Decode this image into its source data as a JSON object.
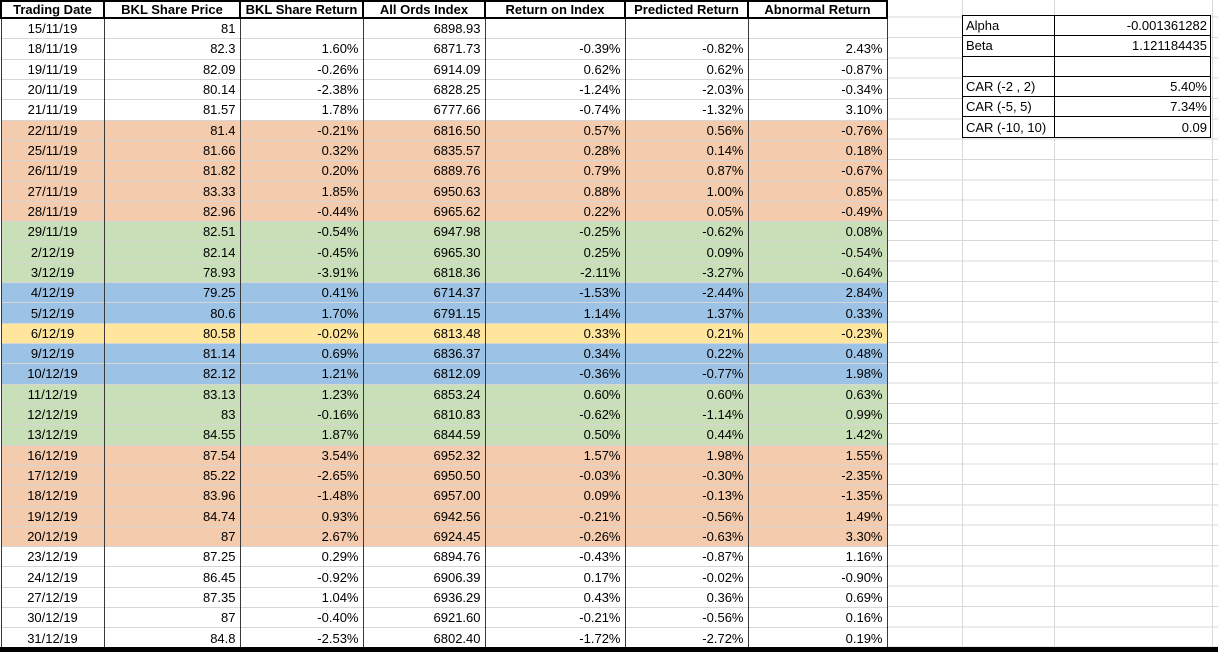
{
  "sheet": {
    "table": {
      "headers": [
        "Trading Date",
        "BKL Share Price",
        "BKL Share Return",
        "All Ords Index",
        "Return on Index",
        "Predicted Return",
        "Abnormal Return"
      ],
      "rows": [
        {
          "color": "none",
          "cells": [
            "15/11/19",
            "81",
            "",
            "6898.93",
            "",
            "",
            ""
          ]
        },
        {
          "color": "none",
          "cells": [
            "18/11/19",
            "82.3",
            "1.60%",
            "6871.73",
            "-0.39%",
            "-0.82%",
            "2.43%"
          ]
        },
        {
          "color": "none",
          "cells": [
            "19/11/19",
            "82.09",
            "-0.26%",
            "6914.09",
            "0.62%",
            "0.62%",
            "-0.87%"
          ]
        },
        {
          "color": "none",
          "cells": [
            "20/11/19",
            "80.14",
            "-2.38%",
            "6828.25",
            "-1.24%",
            "-2.03%",
            "-0.34%"
          ]
        },
        {
          "color": "none",
          "cells": [
            "21/11/19",
            "81.57",
            "1.78%",
            "6777.66",
            "-0.74%",
            "-1.32%",
            "3.10%"
          ]
        },
        {
          "color": "orange",
          "cells": [
            "22/11/19",
            "81.4",
            "-0.21%",
            "6816.50",
            "0.57%",
            "0.56%",
            "-0.76%"
          ]
        },
        {
          "color": "orange",
          "cells": [
            "25/11/19",
            "81.66",
            "0.32%",
            "6835.57",
            "0.28%",
            "0.14%",
            "0.18%"
          ]
        },
        {
          "color": "orange",
          "cells": [
            "26/11/19",
            "81.82",
            "0.20%",
            "6889.76",
            "0.79%",
            "0.87%",
            "-0.67%"
          ]
        },
        {
          "color": "orange",
          "cells": [
            "27/11/19",
            "83.33",
            "1.85%",
            "6950.63",
            "0.88%",
            "1.00%",
            "0.85%"
          ]
        },
        {
          "color": "orange",
          "cells": [
            "28/11/19",
            "82.96",
            "-0.44%",
            "6965.62",
            "0.22%",
            "0.05%",
            "-0.49%"
          ]
        },
        {
          "color": "green",
          "cells": [
            "29/11/19",
            "82.51",
            "-0.54%",
            "6947.98",
            "-0.25%",
            "-0.62%",
            "0.08%"
          ]
        },
        {
          "color": "green",
          "cells": [
            "2/12/19",
            "82.14",
            "-0.45%",
            "6965.30",
            "0.25%",
            "0.09%",
            "-0.54%"
          ]
        },
        {
          "color": "green",
          "cells": [
            "3/12/19",
            "78.93",
            "-3.91%",
            "6818.36",
            "-2.11%",
            "-3.27%",
            "-0.64%"
          ]
        },
        {
          "color": "blue",
          "cells": [
            "4/12/19",
            "79.25",
            "0.41%",
            "6714.37",
            "-1.53%",
            "-2.44%",
            "2.84%"
          ]
        },
        {
          "color": "blue",
          "cells": [
            "5/12/19",
            "80.6",
            "1.70%",
            "6791.15",
            "1.14%",
            "1.37%",
            "0.33%"
          ]
        },
        {
          "color": "yellow",
          "cells": [
            "6/12/19",
            "80.58",
            "-0.02%",
            "6813.48",
            "0.33%",
            "0.21%",
            "-0.23%"
          ]
        },
        {
          "color": "blue",
          "cells": [
            "9/12/19",
            "81.14",
            "0.69%",
            "6836.37",
            "0.34%",
            "0.22%",
            "0.48%"
          ]
        },
        {
          "color": "blue",
          "cells": [
            "10/12/19",
            "82.12",
            "1.21%",
            "6812.09",
            "-0.36%",
            "-0.77%",
            "1.98%"
          ]
        },
        {
          "color": "green",
          "cells": [
            "11/12/19",
            "83.13",
            "1.23%",
            "6853.24",
            "0.60%",
            "0.60%",
            "0.63%"
          ]
        },
        {
          "color": "green",
          "cells": [
            "12/12/19",
            "83",
            "-0.16%",
            "6810.83",
            "-0.62%",
            "-1.14%",
            "0.99%"
          ]
        },
        {
          "color": "green",
          "cells": [
            "13/12/19",
            "84.55",
            "1.87%",
            "6844.59",
            "0.50%",
            "0.44%",
            "1.42%"
          ]
        },
        {
          "color": "orange",
          "cells": [
            "16/12/19",
            "87.54",
            "3.54%",
            "6952.32",
            "1.57%",
            "1.98%",
            "1.55%"
          ]
        },
        {
          "color": "orange",
          "cells": [
            "17/12/19",
            "85.22",
            "-2.65%",
            "6950.50",
            "-0.03%",
            "-0.30%",
            "-2.35%"
          ]
        },
        {
          "color": "orange",
          "cells": [
            "18/12/19",
            "83.96",
            "-1.48%",
            "6957.00",
            "0.09%",
            "-0.13%",
            "-1.35%"
          ]
        },
        {
          "color": "orange",
          "cells": [
            "19/12/19",
            "84.74",
            "0.93%",
            "6942.56",
            "-0.21%",
            "-0.56%",
            "1.49%"
          ]
        },
        {
          "color": "orange",
          "cells": [
            "20/12/19",
            "87",
            "2.67%",
            "6924.45",
            "-0.26%",
            "-0.63%",
            "3.30%"
          ]
        },
        {
          "color": "none",
          "cells": [
            "23/12/19",
            "87.25",
            "0.29%",
            "6894.76",
            "-0.43%",
            "-0.87%",
            "1.16%"
          ]
        },
        {
          "color": "none",
          "cells": [
            "24/12/19",
            "86.45",
            "-0.92%",
            "6906.39",
            "0.17%",
            "-0.02%",
            "-0.90%"
          ]
        },
        {
          "color": "none",
          "cells": [
            "27/12/19",
            "87.35",
            "1.04%",
            "6936.29",
            "0.43%",
            "0.36%",
            "0.69%"
          ]
        },
        {
          "color": "none",
          "cells": [
            "30/12/19",
            "87",
            "-0.40%",
            "6921.60",
            "-0.21%",
            "-0.56%",
            "0.16%"
          ]
        },
        {
          "color": "none",
          "cells": [
            "31/12/19",
            "84.8",
            "-2.53%",
            "6802.40",
            "-1.72%",
            "-2.72%",
            "0.19%"
          ]
        }
      ]
    },
    "stats": {
      "rows": [
        {
          "label": "Alpha",
          "value": "-0.001361282"
        },
        {
          "label": "Beta",
          "value": "1.121184435"
        },
        {
          "label": "",
          "value": ""
        },
        {
          "label": "CAR (-2 , 2)",
          "value": "5.40%"
        },
        {
          "label": "CAR (-5, 5)",
          "value": "7.34%"
        },
        {
          "label": "CAR (-10, 10)",
          "value": "0.09"
        }
      ]
    },
    "colors": {
      "highlight_orange": "#F4CCAD",
      "highlight_green": "#C8DFB8",
      "highlight_blue": "#9CC2E5",
      "highlight_yellow": "#FFE69C",
      "gridline": "#D8D8D8",
      "cell_border": "#3A3A3A"
    }
  }
}
